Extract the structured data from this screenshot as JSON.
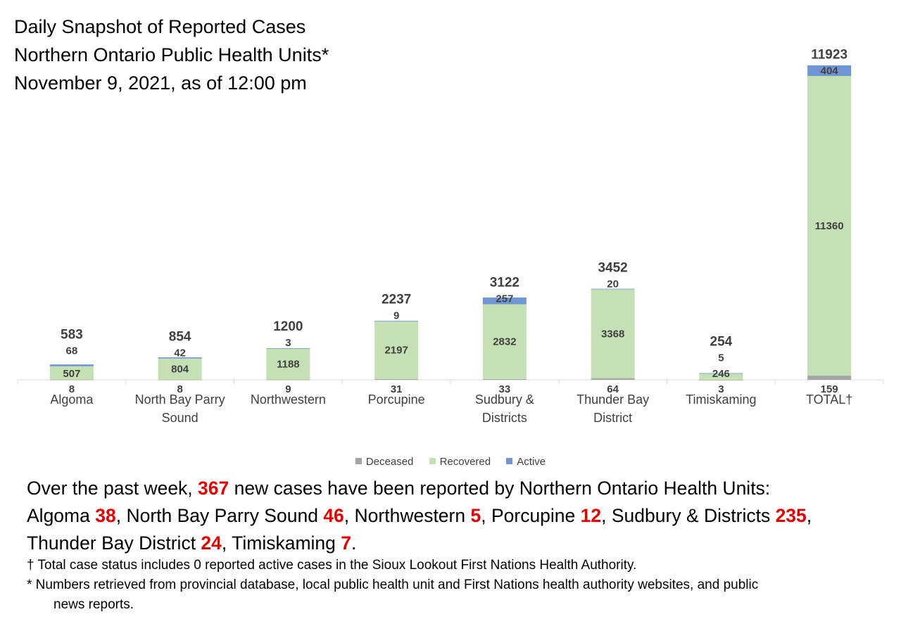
{
  "title_lines": [
    "Daily Snapshot of Reported Cases",
    "Northern Ontario Public Health Units*",
    "November 9, 2021, as of 12:00 pm"
  ],
  "colors": {
    "deceased": "#a5a5a5",
    "recovered": "#c5e0b4",
    "active": "#6f96d2",
    "highlight": "#e00000"
  },
  "chart_data": {
    "type": "bar",
    "stacked": true,
    "categories": [
      "Algoma",
      "North Bay Parry Sound",
      "Northwestern",
      "Porcupine",
      "Sudbury & Districts",
      "Thunder Bay District",
      "Timiskaming",
      "TOTAL†"
    ],
    "category_lines": [
      [
        "Algoma"
      ],
      [
        "North Bay Parry",
        "Sound"
      ],
      [
        "Northwestern"
      ],
      [
        "Porcupine"
      ],
      [
        "Sudbury &",
        "Districts"
      ],
      [
        "Thunder Bay",
        "District"
      ],
      [
        "Timiskaming"
      ],
      [
        "TOTAL†"
      ]
    ],
    "series": [
      {
        "name": "Deceased",
        "values": [
          8,
          8,
          9,
          31,
          33,
          64,
          3,
          159
        ]
      },
      {
        "name": "Recovered",
        "values": [
          507,
          804,
          1188,
          2197,
          2832,
          3368,
          246,
          11360
        ]
      },
      {
        "name": "Active",
        "values": [
          68,
          42,
          3,
          9,
          257,
          20,
          5,
          404
        ]
      }
    ],
    "totals": [
      583,
      854,
      1200,
      2237,
      3122,
      3452,
      254,
      11923
    ],
    "ylim": [
      0,
      12000
    ],
    "grid": false,
    "legend_position": "bottom"
  },
  "summary": {
    "intro": "Over the past week, ",
    "total_new": "367",
    "intro_end": " new cases have been reported by Northern Ontario Health Units:",
    "units": [
      {
        "name": "Algoma ",
        "value": "38",
        "sep": ", "
      },
      {
        "name": "North Bay Parry Sound ",
        "value": "46",
        "sep": ", "
      },
      {
        "name": "Northwestern ",
        "value": "5",
        "sep": ", "
      },
      {
        "name": "Porcupine ",
        "value": "12",
        "sep": ", "
      },
      {
        "name": "Sudbury & Districts ",
        "value": "235",
        "sep": ","
      },
      {
        "name": "Thunder Bay District ",
        "value": "24",
        "sep": ", "
      },
      {
        "name": "Timiskaming ",
        "value": "7",
        "sep": "."
      }
    ]
  },
  "notes": {
    "dagger": "† Total case status includes 0 reported active cases in the Sioux Lookout First Nations Health Authority.",
    "star_line1": "* Numbers retrieved from provincial database, local public health unit and First Nations health authority websites, and public",
    "star_line2": "news reports."
  }
}
